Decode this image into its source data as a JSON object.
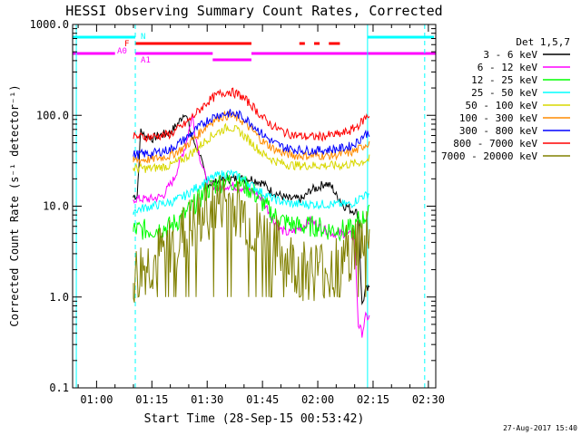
{
  "chart_data": {
    "type": "line",
    "title": "HESSI Observing Summary Count Rates, Corrected",
    "xlabel": "Start Time (28-Sep-15 00:53:42)",
    "ylabel": "Corrected Count Rate (s⁻¹ detector⁻¹)",
    "x_unit": "minutes after 01:00 UT",
    "xlim": [
      -6.5,
      92
    ],
    "ylim": [
      0.1,
      1000
    ],
    "y_scale": "log",
    "x_ticks": [
      {
        "value": 0,
        "label": "01:00"
      },
      {
        "value": 15,
        "label": "01:15"
      },
      {
        "value": 30,
        "label": "01:30"
      },
      {
        "value": 45,
        "label": "01:45"
      },
      {
        "value": 60,
        "label": "02:00"
      },
      {
        "value": 75,
        "label": "02:15"
      },
      {
        "value": 90,
        "label": "02:30"
      }
    ],
    "y_ticks": [
      {
        "value": 0.1,
        "label": "0.1"
      },
      {
        "value": 1,
        "label": "1.0"
      },
      {
        "value": 10,
        "label": "10.0"
      },
      {
        "value": 100,
        "label": "100.0"
      },
      {
        "value": 1000,
        "label": "1000.0"
      }
    ],
    "legend": {
      "placement": "right",
      "title": "Det 1,5,7",
      "entries": [
        {
          "label": "3 - 6 keV",
          "color": "#000000"
        },
        {
          "label": "6 - 12 keV",
          "color": "#ff00ff"
        },
        {
          "label": "12 - 25 keV",
          "color": "#00ff00"
        },
        {
          "label": "25 - 50 keV",
          "color": "#00ffff"
        },
        {
          "label": "50 - 100 keV",
          "color": "#d8d800"
        },
        {
          "label": "100 - 300 keV",
          "color": "#ff8c00"
        },
        {
          "label": "300 - 800 keV",
          "color": "#0000ff"
        },
        {
          "label": "800 - 7000 keV",
          "color": "#ff0000"
        },
        {
          "label": "7000 - 20000 keV",
          "color": "#808000"
        }
      ]
    },
    "series": [
      {
        "name": "3 - 6 keV",
        "color": "#000000",
        "x": [
          10,
          11,
          12,
          13,
          14,
          15,
          16,
          17,
          20,
          22,
          24,
          26,
          28,
          29,
          30,
          32,
          35,
          38,
          40,
          42,
          45,
          47,
          50,
          52,
          54,
          56,
          58,
          60,
          62,
          64,
          65,
          66,
          67,
          68,
          69,
          70,
          71,
          72,
          73,
          74
        ],
        "y": [
          13,
          13,
          70,
          58,
          60,
          55,
          58,
          60,
          65,
          80,
          110,
          55,
          38,
          25,
          18,
          18,
          20,
          20,
          20,
          20,
          18,
          15,
          13,
          12,
          12,
          12,
          15,
          16,
          18,
          16,
          13,
          12,
          10,
          10,
          9,
          9,
          8,
          0.8,
          1.2,
          1.2
        ]
      },
      {
        "name": "6 - 12 keV",
        "color": "#ff00ff",
        "x": [
          10,
          12,
          15,
          18,
          21,
          24,
          26,
          27,
          28,
          30,
          33,
          36,
          39,
          42,
          45,
          48,
          50,
          52,
          54,
          56,
          58,
          60,
          62,
          64,
          66,
          68,
          70,
          71,
          72,
          73,
          74
        ],
        "y": [
          12,
          12,
          12,
          13,
          20,
          45,
          100,
          55,
          35,
          18,
          16,
          17,
          16,
          15,
          12,
          7,
          5.5,
          5,
          5.5,
          6,
          7,
          6,
          5.5,
          5,
          5,
          5,
          4.5,
          0.5,
          0.4,
          0.6,
          0.6
        ]
      },
      {
        "name": "12 - 25 keV",
        "color": "#00ff00",
        "x": [
          10,
          15,
          20,
          24,
          27,
          30,
          33,
          36,
          39,
          42,
          45,
          48,
          50,
          52,
          55,
          58,
          60,
          62,
          64,
          66,
          68,
          70,
          71,
          72,
          73,
          74
        ],
        "y": [
          5.5,
          5.5,
          6,
          8,
          11,
          15,
          18,
          19,
          18,
          15,
          11,
          8,
          7,
          6.5,
          6,
          6,
          6,
          5.5,
          5.5,
          5.5,
          5.5,
          5.5,
          7,
          7,
          8,
          8
        ]
      },
      {
        "name": "25 - 50 keV",
        "color": "#00ffff",
        "x": [
          10,
          15,
          20,
          24,
          27,
          30,
          33,
          36,
          39,
          42,
          45,
          48,
          51,
          54,
          57,
          60,
          63,
          66,
          69,
          71,
          72,
          73,
          74
        ],
        "y": [
          9,
          10,
          11,
          13,
          16,
          19,
          22,
          23,
          21,
          17,
          14,
          12,
          11,
          10.5,
          10.5,
          10.5,
          10.5,
          10.5,
          10.5,
          12,
          13,
          13,
          14
        ]
      },
      {
        "name": "50 - 100 keV",
        "color": "#d8d800",
        "x": [
          10,
          15,
          20,
          24,
          27,
          30,
          33,
          36,
          39,
          42,
          45,
          48,
          51,
          54,
          57,
          60,
          63,
          66,
          69,
          71,
          72,
          73,
          74
        ],
        "y": [
          26,
          26,
          28,
          34,
          42,
          55,
          66,
          75,
          65,
          50,
          38,
          32,
          29,
          28,
          28,
          28,
          28,
          28,
          29,
          30,
          31,
          32,
          33
        ]
      },
      {
        "name": "100 - 300 keV",
        "color": "#ff8c00",
        "x": [
          10,
          15,
          20,
          24,
          27,
          30,
          33,
          36,
          39,
          42,
          45,
          48,
          51,
          54,
          57,
          60,
          63,
          66,
          69,
          71,
          72,
          73,
          74
        ],
        "y": [
          32,
          33,
          36,
          45,
          58,
          78,
          95,
          100,
          90,
          70,
          52,
          43,
          38,
          36,
          36,
          36,
          36,
          37,
          39,
          42,
          45,
          48,
          50
        ]
      },
      {
        "name": "300 - 800 keV",
        "color": "#0000ff",
        "x": [
          10,
          15,
          20,
          24,
          27,
          30,
          33,
          36,
          39,
          42,
          45,
          48,
          51,
          54,
          57,
          60,
          63,
          66,
          69,
          71,
          72,
          73,
          74
        ],
        "y": [
          37,
          38,
          42,
          55,
          70,
          88,
          102,
          105,
          100,
          82,
          62,
          50,
          44,
          42,
          41,
          41,
          42,
          43,
          46,
          52,
          58,
          62,
          65
        ]
      },
      {
        "name": "800 - 7000 keV",
        "color": "#ff0000",
        "x": [
          10,
          15,
          20,
          24,
          27,
          30,
          33,
          36,
          39,
          42,
          45,
          48,
          51,
          54,
          57,
          60,
          63,
          66,
          69,
          71,
          72,
          73,
          74
        ],
        "y": [
          58,
          58,
          62,
          80,
          105,
          140,
          170,
          185,
          165,
          130,
          95,
          75,
          65,
          60,
          58,
          58,
          60,
          62,
          68,
          78,
          85,
          95,
          100
        ]
      },
      {
        "name": "7000 - 20000 keV",
        "color": "#808000",
        "x": [
          10,
          12,
          14,
          16,
          18,
          20,
          22,
          24,
          26,
          28,
          30,
          32,
          34,
          36,
          38,
          40,
          42,
          44,
          46,
          48,
          50,
          52,
          54,
          56,
          58,
          60,
          62,
          64,
          66,
          68,
          70,
          72,
          73,
          74
        ],
        "y": [
          1.5,
          2,
          2.2,
          2.5,
          3,
          3.5,
          4,
          5,
          6,
          7,
          9,
          10,
          11,
          11,
          10,
          8,
          6,
          5,
          4.5,
          4,
          3,
          2.5,
          2.2,
          2,
          2,
          2,
          2,
          2.2,
          2.5,
          3,
          3.5,
          4.5,
          5,
          6
        ]
      }
    ],
    "time_bars": [
      {
        "label": "N",
        "color": "#00ffff",
        "row": "top",
        "segments": [
          [
            -6.5,
            10.5
          ],
          [
            73.5,
            91.5
          ]
        ]
      },
      {
        "label": "F",
        "color": "#ff0000",
        "row": "middle",
        "segments": [
          [
            10.5,
            42
          ],
          [
            55,
            56.5
          ],
          [
            59,
            60.5
          ],
          [
            63,
            66
          ]
        ]
      },
      {
        "label": "A0",
        "color": "#ff00ff",
        "row": "lower",
        "segments": [
          [
            -6.5,
            5
          ],
          [
            10.5,
            31.5
          ],
          [
            42,
            92
          ]
        ]
      },
      {
        "label": "A1",
        "color": "#ff00ff",
        "row": "bottom",
        "segments": [
          [
            31.5,
            42
          ]
        ]
      }
    ],
    "vertical_lines": [
      {
        "x": -5.5,
        "color": "#00ffff",
        "style": "solid"
      },
      {
        "x": 10.5,
        "color": "#00ffff",
        "style": "dashed"
      },
      {
        "x": 73.5,
        "color": "#00ffff",
        "style": "solid"
      },
      {
        "x": 89,
        "color": "#00ffff",
        "style": "dashed"
      }
    ],
    "timestamp": "27-Aug-2017 15:40"
  }
}
